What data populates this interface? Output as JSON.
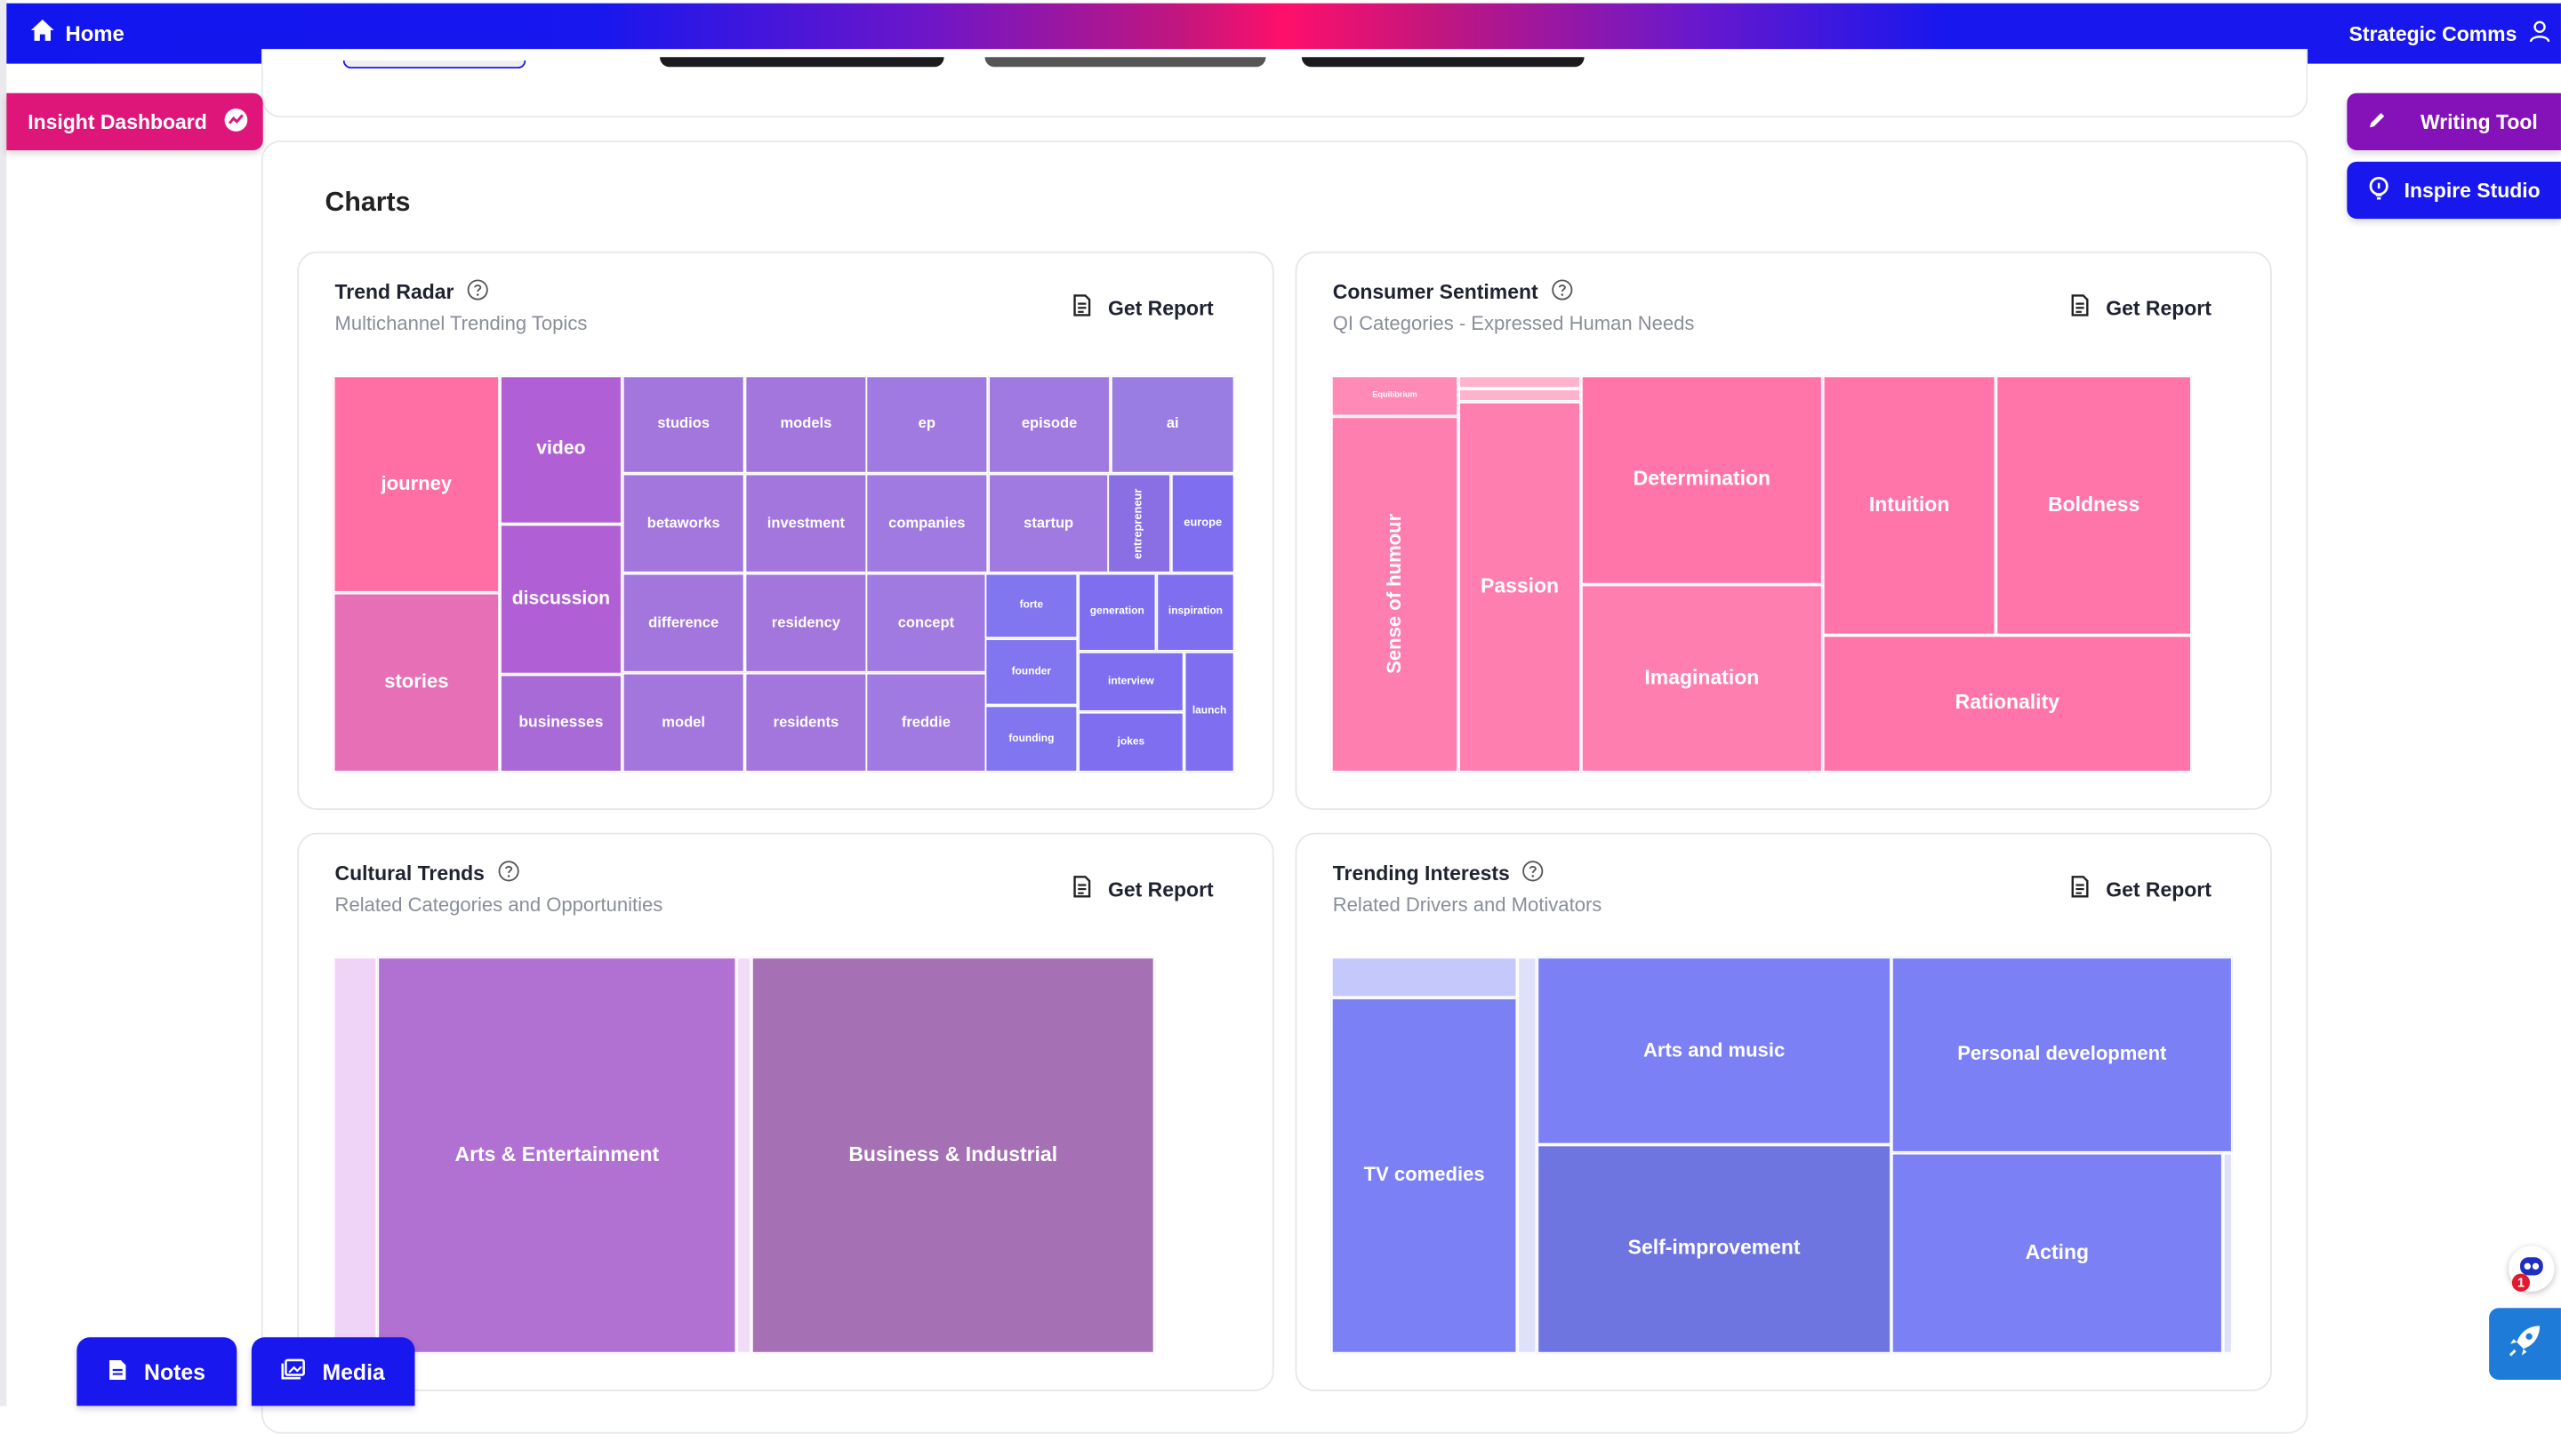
{
  "topbar": {
    "home_label": "Home",
    "account_label": "Strategic Comms"
  },
  "side_buttons": {
    "insight": "Insight Dashboard",
    "writing": "Writing Tool",
    "inspire": "Inspire Studio",
    "notes": "Notes",
    "media": "Media"
  },
  "notification_count": "1",
  "section_title": "Charts",
  "colors": {
    "brand_blue": "#1717ee",
    "brand_pink": "#df1679",
    "brand_purple": "#8512b9"
  },
  "charts": [
    {
      "title": "Trend Radar",
      "subtitle": "Multichannel Trending Topics",
      "report_label": "Get Report",
      "chart_data": {
        "type": "treemap",
        "labels": [
          "journey",
          "stories",
          "video",
          "discussion",
          "businesses",
          "studios",
          "models",
          "ep",
          "episode",
          "ai",
          "betaworks",
          "investment",
          "companies",
          "startup",
          "entrepreneur",
          "europe",
          "difference",
          "residency",
          "concept",
          "forte",
          "generation",
          "inspiration",
          "founder",
          "interview",
          "launch",
          "model",
          "residents",
          "freddie",
          "founding",
          "jokes"
        ]
      }
    },
    {
      "title": "Consumer Sentiment",
      "subtitle": "QI Categories - Expressed Human Needs",
      "report_label": "Get Report",
      "chart_data": {
        "type": "treemap",
        "labels": [
          "Equilibrium",
          "Sense of humour",
          "Passion",
          "Determination",
          "Imagination",
          "Intuition",
          "Boldness",
          "Rationality"
        ]
      }
    },
    {
      "title": "Cultural Trends",
      "subtitle": "Related Categories and Opportunities",
      "report_label": "Get Report",
      "chart_data": {
        "type": "treemap",
        "labels": [
          "Arts & Entertainment",
          "Business & Industrial"
        ]
      }
    },
    {
      "title": "Trending Interests",
      "subtitle": "Related Drivers and Motivators",
      "report_label": "Get Report",
      "chart_data": {
        "type": "treemap",
        "labels": [
          "TV comedies",
          "Arts and music",
          "Personal development",
          "Self-improvement",
          "Acting"
        ]
      }
    }
  ]
}
